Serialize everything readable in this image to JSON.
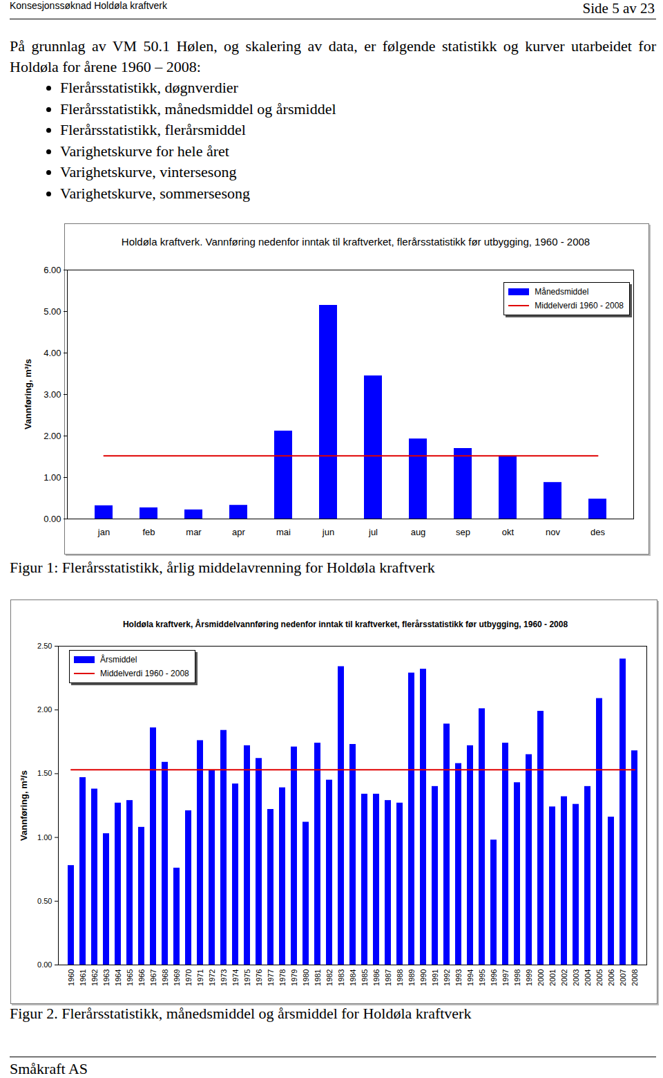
{
  "header": {
    "left": "Konsesjonssøknad Holdøla kraftverk",
    "right": "Side 5 av 23"
  },
  "intro": "På grunnlag av VM 50.1 Hølen, og skalering av data, er følgende statistikk og kurver utarbeidet for Holdøla for årene 1960 – 2008:",
  "bullets": [
    "Flerårsstatistikk, døgnverdier",
    "Flerårsstatistikk, månedsmiddel og årsmiddel",
    "Flerårsstatistikk, flerårsmiddel",
    "Varighetskurve for hele året",
    "Varighetskurve, vintersesong",
    "Varighetskurve, sommersesong"
  ],
  "chart_data": [
    {
      "type": "bar",
      "title": "Holdøla kraftverk. Vannføring nedenfor inntak til kraftverket, flerårsstatistikk før utbygging, 1960 - 2008",
      "y_label": "Vannføring, m³/s",
      "categories": [
        "jan",
        "feb",
        "mar",
        "apr",
        "mai",
        "jun",
        "jul",
        "aug",
        "sep",
        "okt",
        "nov",
        "des"
      ],
      "series": [
        {
          "name": "Månedsmiddel",
          "type": "bar",
          "color": "#0000ff",
          "values": [
            0.32,
            0.27,
            0.22,
            0.33,
            2.12,
            5.15,
            3.45,
            1.93,
            1.7,
            1.52,
            0.88,
            0.48
          ]
        },
        {
          "name": "Middelverdi 1960 - 2008",
          "type": "line",
          "color": "#e00000",
          "values": [
            1.52,
            1.52,
            1.52,
            1.52,
            1.52,
            1.52,
            1.52,
            1.52,
            1.52,
            1.52,
            1.52,
            1.52
          ]
        }
      ],
      "ylim": [
        0,
        6
      ],
      "yticks": [
        {
          "value": 0,
          "label": "0.00"
        },
        {
          "value": 1,
          "label": "1.00"
        },
        {
          "value": 2,
          "label": "2.00"
        },
        {
          "value": 3,
          "label": "3.00"
        },
        {
          "value": 4,
          "label": "4.00"
        },
        {
          "value": 5,
          "label": "5.00"
        },
        {
          "value": 6,
          "label": "6.00"
        }
      ],
      "legend": "top-right"
    },
    {
      "type": "bar",
      "title": "Holdøla kraftverk, Årsmiddelvannføring nedenfor inntak til kraftverket, flerårsstatistikk før utbygging, 1960 - 2008",
      "y_label": "Vannføring, m³/s",
      "categories": [
        "1960",
        "1961",
        "1962",
        "1963",
        "1964",
        "1965",
        "1966",
        "1967",
        "1968",
        "1969",
        "1970",
        "1971",
        "1972",
        "1973",
        "1974",
        "1975",
        "1976",
        "1977",
        "1978",
        "1979",
        "1980",
        "1981",
        "1982",
        "1983",
        "1984",
        "1985",
        "1986",
        "1987",
        "1988",
        "1989",
        "1990",
        "1991",
        "1992",
        "1993",
        "1994",
        "1995",
        "1996",
        "1997",
        "1998",
        "1999",
        "2000",
        "2001",
        "2002",
        "2003",
        "2004",
        "2005",
        "2006",
        "2007",
        "2008"
      ],
      "series": [
        {
          "name": "Årsmiddel",
          "type": "bar",
          "color": "#0000ff",
          "values": [
            0.78,
            1.47,
            1.38,
            1.03,
            1.27,
            1.29,
            1.08,
            1.86,
            1.59,
            0.76,
            1.21,
            1.76,
            1.53,
            1.84,
            1.42,
            1.72,
            1.62,
            1.22,
            1.39,
            1.71,
            1.12,
            1.74,
            1.45,
            2.34,
            1.73,
            1.34,
            1.34,
            1.29,
            1.27,
            2.29,
            2.32,
            1.4,
            1.89,
            1.58,
            1.72,
            2.01,
            0.98,
            1.74,
            1.43,
            1.65,
            1.99,
            1.24,
            1.32,
            1.26,
            1.4,
            2.09,
            1.16,
            2.4,
            1.68
          ]
        },
        {
          "name": "Middelverdi 1960 - 2008",
          "type": "line",
          "color": "#e00000",
          "values": [
            1.53,
            1.53,
            1.53,
            1.53,
            1.53,
            1.53,
            1.53,
            1.53,
            1.53,
            1.53,
            1.53,
            1.53,
            1.53,
            1.53,
            1.53,
            1.53,
            1.53,
            1.53,
            1.53,
            1.53,
            1.53,
            1.53,
            1.53,
            1.53,
            1.53,
            1.53,
            1.53,
            1.53,
            1.53,
            1.53,
            1.53,
            1.53,
            1.53,
            1.53,
            1.53,
            1.53,
            1.53,
            1.53,
            1.53,
            1.53,
            1.53,
            1.53,
            1.53,
            1.53,
            1.53,
            1.53,
            1.53,
            1.53,
            1.53
          ]
        }
      ],
      "ylim": [
        0,
        2.5
      ],
      "yticks": [
        {
          "value": 0,
          "label": "0.00"
        },
        {
          "value": 0.5,
          "label": "0.50"
        },
        {
          "value": 1,
          "label": "1.00"
        },
        {
          "value": 1.5,
          "label": "1.50"
        },
        {
          "value": 2,
          "label": "2.00"
        },
        {
          "value": 2.5,
          "label": "2.50"
        }
      ],
      "legend": "top-left"
    }
  ],
  "captions": [
    "Figur 1: Flerårsstatistikk, årlig middelavrenning for Holdøla kraftverk",
    "Figur 2. Flerårsstatistikk, månedsmiddel og årsmiddel for Holdøla kraftverk"
  ],
  "footer": "Småkraft AS"
}
